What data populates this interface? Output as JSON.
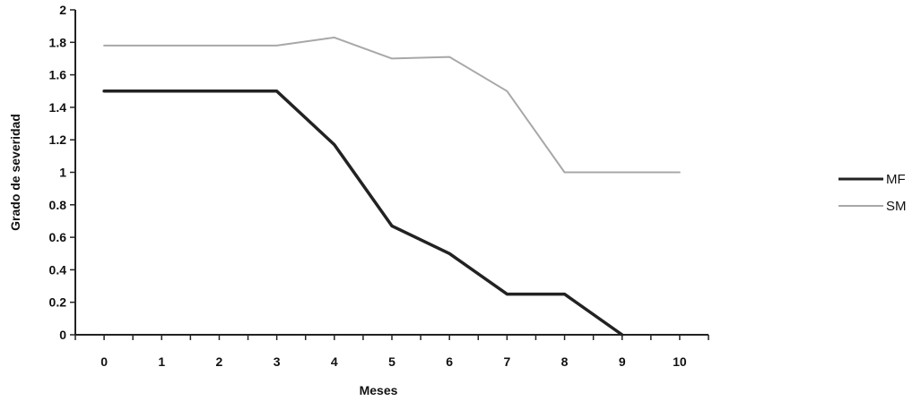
{
  "chart_data": {
    "type": "line",
    "title": "",
    "xlabel": "Meses",
    "ylabel": "Grado de severidad",
    "x": [
      0,
      1,
      2,
      3,
      4,
      5,
      6,
      7,
      8,
      9,
      10
    ],
    "x_ticks": [
      "0",
      "1",
      "2",
      "3",
      "4",
      "5",
      "6",
      "7",
      "8",
      "9",
      "10"
    ],
    "y_ticks": [
      "0",
      "0.2",
      "0.4",
      "0.6",
      "0.8",
      "1",
      "1.2",
      "1.4",
      "1.6",
      "1.8",
      "2"
    ],
    "xlim": [
      -0.5,
      10.5
    ],
    "ylim": [
      0,
      2
    ],
    "grid": false,
    "legend_position": "right",
    "series": [
      {
        "name": "MF",
        "color": "#222222",
        "x": [
          0,
          1,
          2,
          3,
          4,
          5,
          6,
          7,
          8,
          9
        ],
        "values": [
          1.5,
          1.5,
          1.5,
          1.5,
          1.17,
          0.67,
          0.5,
          0.25,
          0.25,
          0.0
        ]
      },
      {
        "name": "SM",
        "color": "#a8a8a8",
        "x": [
          0,
          1,
          2,
          3,
          4,
          5,
          6,
          7,
          8,
          9,
          10
        ],
        "values": [
          1.78,
          1.78,
          1.78,
          1.78,
          1.83,
          1.7,
          1.71,
          1.5,
          1.0,
          1.0,
          1.0
        ]
      }
    ]
  }
}
